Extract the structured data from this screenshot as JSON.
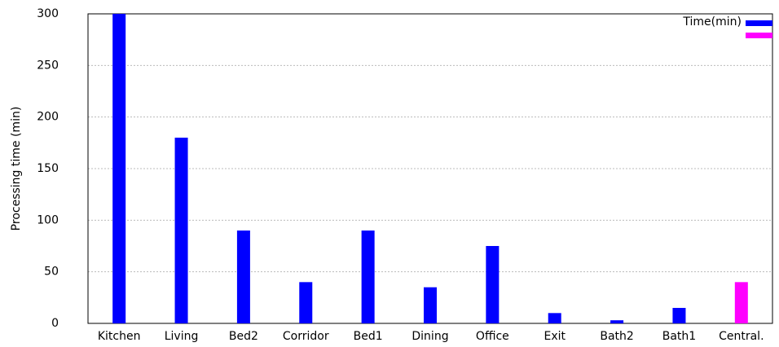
{
  "chart_data": {
    "type": "bar",
    "ylabel": "Processing time (min)",
    "categories": [
      "Kitchen",
      "Living",
      "Bed2",
      "Corridor",
      "Bed1",
      "Dining",
      "Office",
      "Exit",
      "Bath2",
      "Bath1",
      "Central."
    ],
    "values": [
      300,
      180,
      90,
      40,
      90,
      35,
      75,
      10,
      3,
      15,
      40
    ],
    "colors": [
      "#0000ff",
      "#0000ff",
      "#0000ff",
      "#0000ff",
      "#0000ff",
      "#0000ff",
      "#0000ff",
      "#0000ff",
      "#0000ff",
      "#0000ff",
      "#ff00ff"
    ],
    "legend": [
      {
        "name": "Time(min)",
        "color": "#0000ff"
      },
      {
        "color": "#ff00ff"
      }
    ],
    "legend_position": "upper right",
    "ylim": [
      0,
      300
    ],
    "yticks": [
      0,
      50,
      100,
      150,
      200,
      250,
      300
    ],
    "grid": true
  }
}
